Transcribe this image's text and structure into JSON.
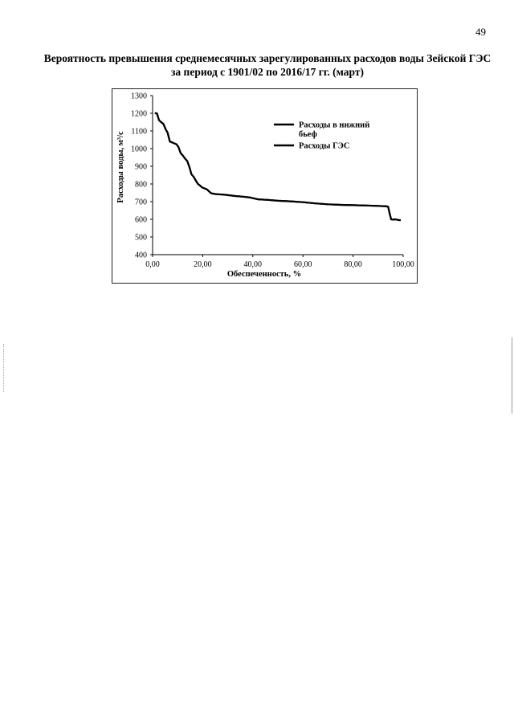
{
  "page": {
    "number": "49"
  },
  "title": {
    "line1": "Вероятность превышения среднемесячных зарегулированных расходов воды Зейской ГЭС",
    "line2": "за период с 1901/02 по 2016/17 гг. (март)"
  },
  "chart_data": {
    "type": "line",
    "title": "",
    "xlabel": "Обеспеченность, %",
    "ylabel": "Расходы воды, м³/с",
    "xlim": [
      0,
      100
    ],
    "ylim": [
      400,
      1300
    ],
    "x_ticks": [
      "0,00",
      "20,00",
      "40,00",
      "60,00",
      "80,00",
      "100,00"
    ],
    "x_tick_values": [
      0,
      20,
      40,
      60,
      80,
      100
    ],
    "y_ticks": [
      "1300",
      "1200",
      "1100",
      "1000",
      "900",
      "800",
      "700",
      "600",
      "500",
      "400"
    ],
    "y_tick_values": [
      1300,
      1200,
      1100,
      1000,
      900,
      800,
      700,
      600,
      500,
      400
    ],
    "grid": false,
    "legend_position": "top-right",
    "series": [
      {
        "name": "Расходы в нижний бьеф",
        "color": "#000000",
        "x": [
          0.9,
          1.7,
          2.6,
          3.4,
          4.3,
          5.2,
          6.0,
          6.9,
          7.8,
          8.6,
          9.5,
          10.3,
          11.2,
          12.1,
          12.9,
          13.8,
          14.7,
          15.5,
          16.4,
          17.2,
          18.1,
          19.0,
          19.8,
          20.7,
          21.6,
          22.4,
          23.3,
          24.1,
          25.0,
          26.0,
          28.0,
          30.0,
          33.0,
          36.0,
          39.0,
          42.0,
          46.0,
          50.0,
          55.0,
          60.0,
          65.0,
          70.0,
          75.0,
          80.0,
          85.0,
          90.0,
          93.5,
          94.0,
          94.5,
          95.2,
          96.0,
          97.0,
          98.0,
          99.0
        ],
        "y": [
          1200,
          1200,
          1160,
          1150,
          1140,
          1110,
          1090,
          1040,
          1035,
          1030,
          1025,
          1010,
          975,
          960,
          945,
          930,
          895,
          855,
          840,
          820,
          800,
          790,
          780,
          775,
          770,
          760,
          748,
          745,
          743,
          742,
          740,
          737,
          732,
          728,
          723,
          713,
          710,
          705,
          702,
          697,
          690,
          685,
          682,
          680,
          678,
          676,
          673,
          671,
          640,
          600,
          598,
          600,
          596,
          595
        ]
      },
      {
        "name": "Расходы ГЭС",
        "color": "#000000",
        "x": [
          0.9,
          1.7,
          2.6,
          3.4,
          4.3,
          5.2,
          6.0,
          6.9,
          7.8,
          8.6,
          9.5,
          10.3,
          11.2,
          12.1,
          12.9,
          13.8,
          14.7,
          15.5,
          16.4,
          17.2,
          18.1,
          19.0,
          19.8,
          20.7,
          21.6,
          22.4,
          23.3,
          24.1,
          25.0,
          26.0,
          28.0,
          30.0,
          33.0,
          36.0,
          39.0,
          42.0,
          46.0,
          50.0,
          55.0,
          60.0,
          65.0,
          70.0,
          75.0,
          80.0,
          85.0,
          90.0,
          93.5,
          94.0,
          94.5,
          95.2,
          96.0,
          97.0,
          98.0,
          99.0
        ],
        "y": [
          1200,
          1200,
          1160,
          1150,
          1140,
          1110,
          1090,
          1040,
          1035,
          1030,
          1025,
          1010,
          975,
          960,
          945,
          930,
          895,
          855,
          840,
          820,
          800,
          790,
          780,
          775,
          770,
          760,
          748,
          745,
          743,
          742,
          740,
          737,
          732,
          728,
          723,
          713,
          710,
          705,
          702,
          697,
          690,
          685,
          682,
          680,
          678,
          676,
          673,
          671,
          640,
          600,
          598,
          600,
          596,
          595
        ]
      }
    ],
    "legend": {
      "entries": [
        {
          "line1": "Расходы в нижний",
          "line2": "бьеф"
        },
        {
          "line1": "Расходы ГЭС",
          "line2": ""
        }
      ]
    }
  }
}
